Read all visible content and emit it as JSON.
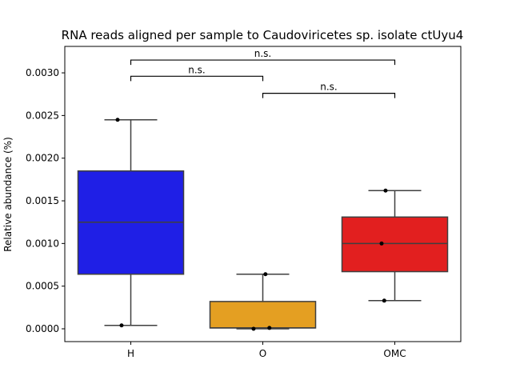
{
  "chart_data": {
    "type": "box",
    "title": "RNA reads aligned per sample to Caudoviricetes sp. isolate ctUyu4",
    "xlabel": "",
    "ylabel": "Relative abundance (%)",
    "ylim": [
      -0.00015,
      0.00331
    ],
    "yticks": [
      0.0,
      0.0005,
      0.001,
      0.0015,
      0.002,
      0.0025,
      0.003
    ],
    "ytick_labels": [
      "0.0000",
      "0.0005",
      "0.0010",
      "0.0015",
      "0.0020",
      "0.0025",
      "0.0030"
    ],
    "grid": false,
    "categories": [
      "H",
      "O",
      "OMC"
    ],
    "colors": [
      "#1f1fe6",
      "#e49f22",
      "#e21f1f"
    ],
    "boxes": [
      {
        "category": "H",
        "whisker_low": 4e-05,
        "q1": 0.00064,
        "median": 0.00125,
        "q3": 0.00185,
        "whisker_high": 0.00245
      },
      {
        "category": "O",
        "whisker_low": 0.0,
        "q1": 1e-05,
        "median": 1e-05,
        "q3": 0.00032,
        "whisker_high": 0.00064
      },
      {
        "category": "OMC",
        "whisker_low": 0.00033,
        "q1": 0.00067,
        "median": 0.001,
        "q3": 0.00131,
        "whisker_high": 0.00162
      }
    ],
    "points": [
      {
        "category": "H",
        "y": 0.00245,
        "offset": -0.1
      },
      {
        "category": "H",
        "y": 4e-05,
        "offset": -0.07
      },
      {
        "category": "O",
        "y": 0.00064,
        "offset": 0.02
      },
      {
        "category": "O",
        "y": 0.0,
        "offset": -0.07
      },
      {
        "category": "O",
        "y": 1e-05,
        "offset": 0.05
      },
      {
        "category": "OMC",
        "y": 0.00162,
        "offset": -0.07
      },
      {
        "category": "OMC",
        "y": 0.001,
        "offset": -0.1
      },
      {
        "category": "OMC",
        "y": 0.00033,
        "offset": -0.08
      }
    ],
    "annotations": [
      {
        "from": "H",
        "to": "OMC",
        "y": 0.00315,
        "text": "n.s."
      },
      {
        "from": "H",
        "to": "O",
        "y": 0.00296,
        "text": "n.s."
      },
      {
        "from": "O",
        "to": "OMC",
        "y": 0.00276,
        "text": "n.s."
      }
    ]
  }
}
